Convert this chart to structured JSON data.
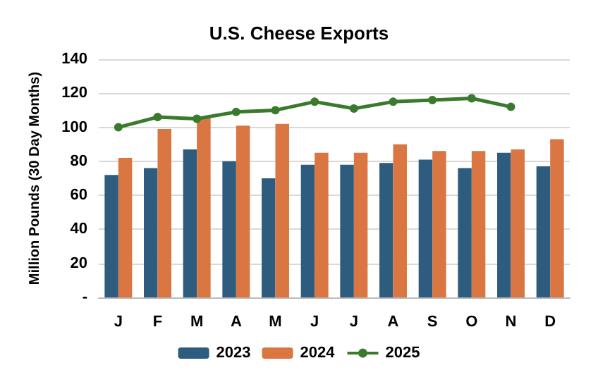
{
  "chart_data": {
    "type": "bar",
    "title": "U.S. Cheese Exports",
    "ylabel": "Million Pounds (30 Day Months)",
    "categories": [
      "J",
      "F",
      "M",
      "A",
      "M",
      "J",
      "J",
      "A",
      "S",
      "O",
      "N",
      "D"
    ],
    "series": [
      {
        "name": "2023",
        "color": "#2e5c7e",
        "values": [
          72,
          76,
          87,
          80,
          70,
          78,
          78,
          79,
          81,
          76,
          85,
          77
        ]
      },
      {
        "name": "2024",
        "color": "#d97642",
        "values": [
          82,
          99,
          106,
          101,
          102,
          85,
          85,
          90,
          86,
          86,
          87,
          93
        ]
      },
      {
        "name": "2025",
        "type": "line",
        "color": "#3a7a2c",
        "marker": "circle",
        "values": [
          100,
          106,
          105,
          109,
          110,
          115,
          111,
          115,
          116,
          117,
          112,
          null
        ]
      }
    ],
    "ylim": [
      0,
      140
    ],
    "yticks": [
      {
        "value": 0,
        "label": "-"
      },
      20,
      40,
      60,
      80,
      100,
      120,
      140
    ],
    "grid": "y",
    "legend": "bottom"
  }
}
